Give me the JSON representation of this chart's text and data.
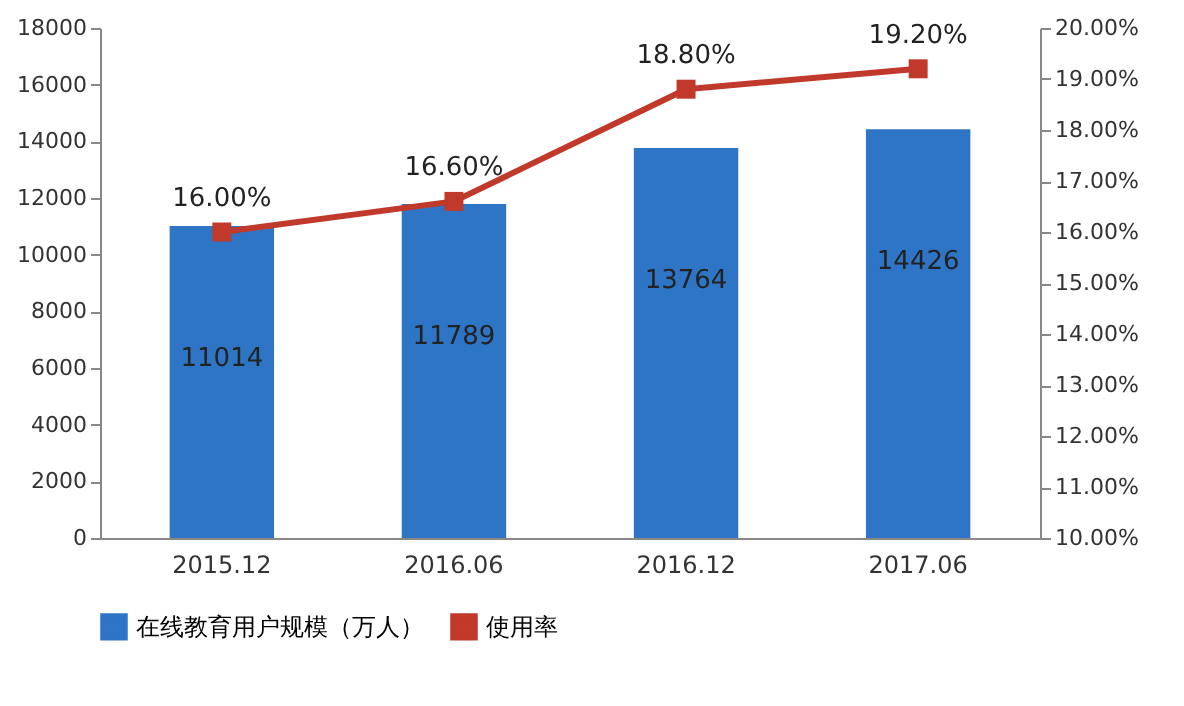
{
  "chart_data": {
    "type": "bar",
    "categories": [
      "2015.12",
      "2016.06",
      "2016.12",
      "2017.06"
    ],
    "series": [
      {
        "name": "在线教育用户规模（万人）",
        "color": "#2e75c6",
        "values": [
          11014,
          11789,
          13764,
          14426
        ],
        "value_labels": [
          "11014",
          "11789",
          "13764",
          "14426"
        ]
      },
      {
        "type": "line",
        "name": "使用率",
        "color": "#c0392b",
        "axis": "y2",
        "values": [
          16.0,
          16.6,
          18.8,
          19.2
        ],
        "value_labels": [
          "16.00%",
          "16.60%",
          "18.80%",
          "19.20%"
        ]
      }
    ],
    "ylim": [
      0,
      18000
    ],
    "yticks": [
      0,
      2000,
      4000,
      6000,
      8000,
      10000,
      12000,
      14000,
      16000,
      18000
    ],
    "y2lim": [
      10,
      20
    ],
    "y2ticks": [
      {
        "value": 10,
        "label": "10.00%"
      },
      {
        "value": 11,
        "label": "11.00%"
      },
      {
        "value": 12,
        "label": "12.00%"
      },
      {
        "value": 13,
        "label": "13.00%"
      },
      {
        "value": 14,
        "label": "14.00%"
      },
      {
        "value": 15,
        "label": "15.00%"
      },
      {
        "value": 16,
        "label": "16.00%"
      },
      {
        "value": 17,
        "label": "17.00%"
      },
      {
        "value": 18,
        "label": "18.00%"
      },
      {
        "value": 19,
        "label": "19.00%"
      },
      {
        "value": 20,
        "label": "20.00%"
      }
    ],
    "grid": false,
    "legend": "bottom",
    "marker": "square"
  }
}
